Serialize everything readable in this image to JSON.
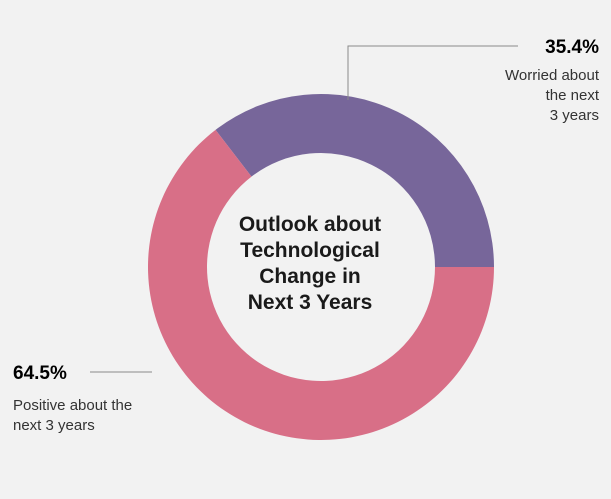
{
  "chart_data": {
    "type": "pie",
    "variant": "donut",
    "center_title_lines": [
      "Outlook about",
      "Technological",
      "Change in",
      "Next 3 Years"
    ],
    "slices": [
      {
        "label_lines": [
          "Worried about",
          "the next",
          "3 years"
        ],
        "value": 35.4,
        "value_label": "35.4%",
        "color": "#77669a"
      },
      {
        "label_lines": [
          "Positive about the",
          "next 3 years"
        ],
        "value": 64.5,
        "value_label": "64.5%",
        "color": "#d86f87"
      }
    ],
    "legend": "none",
    "background": "#f2f2f2"
  }
}
